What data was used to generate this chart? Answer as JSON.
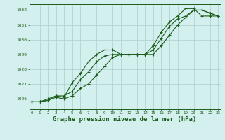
{
  "title": "Graphe pression niveau de la mer (hPa)",
  "bg_color": "#d4f0ee",
  "grid_color": "#aacfcc",
  "line_color": "#1a5c1a",
  "x_values": [
    0,
    1,
    2,
    3,
    4,
    5,
    6,
    7,
    8,
    9,
    10,
    11,
    12,
    13,
    14,
    15,
    16,
    17,
    18,
    19,
    20,
    21,
    22,
    23
  ],
  "line1": [
    1025.8,
    1025.8,
    1025.9,
    1026.2,
    1026.2,
    1026.5,
    1027.3,
    1027.8,
    1028.5,
    1028.9,
    1029.0,
    1029.0,
    1029.0,
    1029.0,
    1029.0,
    1029.3,
    1030.1,
    1030.9,
    1031.4,
    1031.6,
    1032.0,
    1032.0,
    1031.8,
    1031.6
  ],
  "line2": [
    1025.8,
    1025.8,
    1026.0,
    1026.2,
    1026.1,
    1027.1,
    1027.7,
    1028.5,
    1029.0,
    1029.3,
    1029.3,
    1029.0,
    1029.0,
    1029.0,
    1029.0,
    1029.6,
    1030.5,
    1031.2,
    1031.6,
    1032.1,
    1032.1,
    1031.6,
    1031.6,
    1031.6
  ],
  "line3": [
    1025.8,
    1025.8,
    1025.9,
    1026.1,
    1026.0,
    1026.2,
    1026.7,
    1027.0,
    1027.6,
    1028.2,
    1028.8,
    1029.0,
    1029.0,
    1029.0,
    1029.0,
    1029.0,
    1029.6,
    1030.3,
    1031.0,
    1031.5,
    1032.0,
    1032.0,
    1031.8,
    1031.6
  ],
  "ylim": [
    1025.3,
    1032.4
  ],
  "yticks": [
    1026,
    1027,
    1028,
    1029,
    1030,
    1031,
    1032
  ],
  "xlim": [
    -0.3,
    23.3
  ]
}
